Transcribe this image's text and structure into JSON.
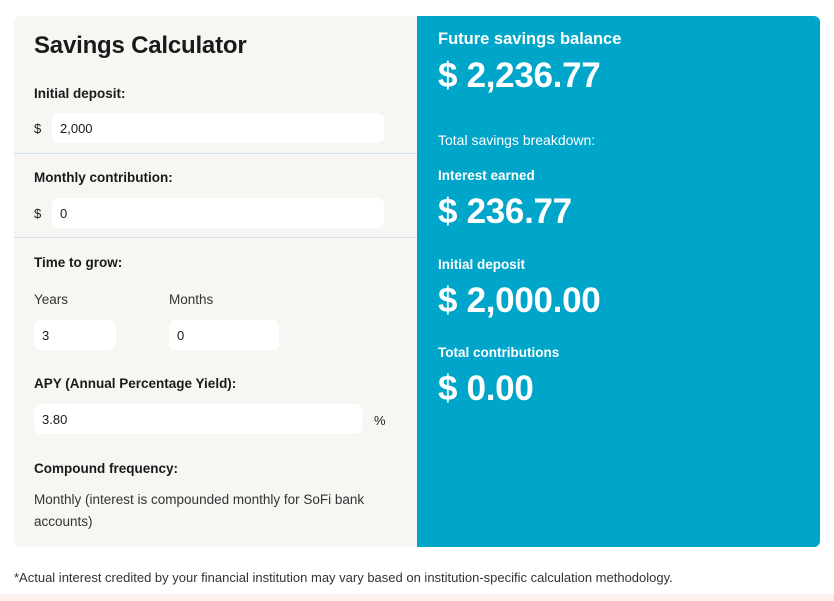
{
  "calculator": {
    "title": "Savings Calculator",
    "initial_deposit": {
      "label": "Initial deposit:",
      "currency": "$",
      "value": "2,000"
    },
    "monthly_contribution": {
      "label": "Monthly contribution:",
      "currency": "$",
      "value": "0"
    },
    "time_to_grow": {
      "label": "Time to grow:",
      "years_label": "Years",
      "years_value": "3",
      "months_label": "Months",
      "months_value": "0"
    },
    "apy": {
      "label": "APY (Annual Percentage Yield):",
      "value": "3.80",
      "unit": "%"
    },
    "compound_frequency": {
      "label": "Compound frequency:",
      "text": "Monthly (interest is compounded monthly for SoFi bank accounts)"
    }
  },
  "results": {
    "future_balance_label": "Future savings balance",
    "future_balance_value": "$ 2,236.77",
    "breakdown_label": "Total savings breakdown:",
    "interest_earned_label": "Interest earned",
    "interest_earned_value": "$ 236.77",
    "initial_deposit_label": "Initial deposit",
    "initial_deposit_value": "$ 2,000.00",
    "total_contributions_label": "Total contributions",
    "total_contributions_value": "$ 0.00"
  },
  "footnote": "*Actual interest credited by your financial institution may vary based on institution-specific calculation methodology.",
  "colors": {
    "panel_left": "#f7f6f3",
    "panel_right": "#00a6ca",
    "input_bg": "#ffffff"
  }
}
